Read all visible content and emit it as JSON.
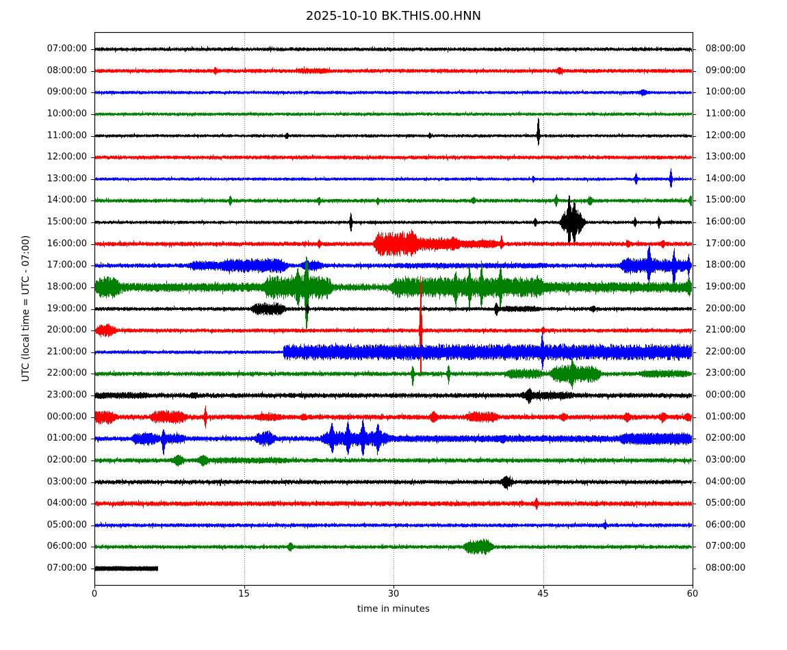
{
  "chart_data": {
    "type": "line",
    "subtype": "seismogram-dayplot",
    "title": "2025-10-10 BK.THIS.00.HNN",
    "xlabel": "time in minutes",
    "ylabel": "UTC (local time = UTC - 07:00)",
    "x_range": [
      0,
      60
    ],
    "x_ticks": [
      "0",
      "15",
      "30",
      "45",
      "60"
    ],
    "gridlines_min": [
      15,
      30,
      45
    ],
    "grid": "dotted-vertical",
    "legend": "none",
    "colors_cycle": [
      "#000000",
      "#ff0000",
      "#0000ff",
      "#008000"
    ],
    "traces": [
      {
        "left_label": "07:00:00",
        "right_label": "08:00:00",
        "color": "#000000",
        "base": 2.2,
        "events": []
      },
      {
        "left_label": "08:00:00",
        "right_label": "09:00:00",
        "color": "#ff0000",
        "base": 2.4,
        "events": [
          {
            "t": 12.1,
            "a": 4,
            "w": 0.1
          },
          {
            "t0": 20.5,
            "t1": 23,
            "a": 1.5
          },
          {
            "t": 46.6,
            "a": 3,
            "w": 0.2
          }
        ]
      },
      {
        "left_label": "09:00:00",
        "right_label": "10:00:00",
        "color": "#0000ff",
        "base": 2.0,
        "events": [
          {
            "t": 55,
            "a": 3,
            "w": 0.2
          }
        ]
      },
      {
        "left_label": "10:00:00",
        "right_label": "11:00:00",
        "color": "#008000",
        "base": 2.0,
        "events": []
      },
      {
        "left_label": "11:00:00",
        "right_label": "12:00:00",
        "color": "#000000",
        "base": 1.9,
        "events": [
          {
            "t": 19.3,
            "a": 3.5,
            "w": 0.08
          },
          {
            "t": 33.6,
            "a": 3,
            "w": 0.08
          },
          {
            "t": 44.5,
            "a": 26,
            "a2": 13,
            "w": 0.08
          }
        ]
      },
      {
        "left_label": "12:00:00",
        "right_label": "13:00:00",
        "color": "#ff0000",
        "base": 2.3,
        "events": []
      },
      {
        "left_label": "13:00:00",
        "right_label": "14:00:00",
        "color": "#0000ff",
        "base": 1.9,
        "events": [
          {
            "t": 44,
            "a": 3,
            "w": 0.08
          },
          {
            "t": 54.3,
            "a": 8,
            "w": 0.08
          },
          {
            "t": 57.8,
            "a": 14,
            "w": 0.08
          }
        ]
      },
      {
        "left_label": "14:00:00",
        "right_label": "15:00:00",
        "color": "#008000",
        "base": 2.3,
        "events": [
          {
            "t": 13.6,
            "a": 6,
            "w": 0.08
          },
          {
            "t": 22.5,
            "a": 5,
            "w": 0.08
          },
          {
            "t": 28.4,
            "a": 3,
            "a2": 6,
            "w": 0.08
          },
          {
            "t": 38,
            "a": 4,
            "w": 0.1
          },
          {
            "t": 46.3,
            "a": 9,
            "w": 0.08
          },
          {
            "t": 49.7,
            "a": 5,
            "w": 0.15
          },
          {
            "t": 59.8,
            "a": 6,
            "w": 0.1
          }
        ]
      },
      {
        "left_label": "15:00:00",
        "right_label": "16:00:00",
        "color": "#000000",
        "base": 2.0,
        "events": [
          {
            "t": 25.7,
            "a": 13,
            "w": 0.08
          },
          {
            "t": 44.2,
            "a": 5,
            "w": 0.08
          },
          {
            "t0": 47,
            "t1": 48.6,
            "a": 14
          },
          {
            "t": 47.6,
            "a": 28,
            "a2": 20,
            "w": 0.1
          },
          {
            "t": 48.1,
            "a": 22,
            "w": 0.1
          },
          {
            "t": 54.2,
            "a": 6,
            "w": 0.08
          },
          {
            "t": 56.6,
            "a": 8,
            "w": 0.08
          }
        ]
      },
      {
        "left_label": "16:00:00",
        "right_label": "17:00:00",
        "color": "#ff0000",
        "base": 2.6,
        "events": [
          {
            "t": 22.5,
            "a": 4,
            "w": 0.1
          },
          {
            "t0": 28.3,
            "t1": 31.8,
            "a": 13
          },
          {
            "t0": 31.8,
            "t1": 36,
            "a": 6
          },
          {
            "t0": 36,
            "t1": 40,
            "a": 3
          },
          {
            "t": 40.8,
            "a": 10,
            "a2": 6,
            "w": 0.08
          },
          {
            "t": 53.5,
            "a": 4,
            "w": 0.1
          },
          {
            "t": 57,
            "a": 4,
            "w": 0.1
          }
        ]
      },
      {
        "left_label": "17:00:00",
        "right_label": "18:00:00",
        "color": "#0000ff",
        "base": 2.6,
        "events": [
          {
            "t0": 9.7,
            "t1": 13,
            "a": 4
          },
          {
            "t0": 13.3,
            "t1": 18.8,
            "a": 7
          },
          {
            "t0": 21,
            "t1": 22.3,
            "a": 5
          },
          {
            "t0": 30,
            "t1": 45,
            "a": 1
          },
          {
            "t0": 53,
            "t1": 56.2,
            "a": 8
          },
          {
            "t": 55.6,
            "a": 26,
            "a2": 20,
            "w": 0.1
          },
          {
            "t0": 56.8,
            "t1": 59.2,
            "a": 6
          },
          {
            "t": 58.1,
            "a": 18,
            "a2": 36,
            "w": 0.08
          },
          {
            "t": 59.6,
            "a": 12,
            "w": 0.08
          }
        ]
      },
      {
        "left_label": "18:00:00",
        "right_label": "19:00:00",
        "color": "#008000",
        "base": 4.2,
        "events": [
          {
            "t0": 0.3,
            "t1": 2,
            "a": 10
          },
          {
            "t0": 2,
            "t1": 17,
            "a": 1.5
          },
          {
            "t0": 17.3,
            "t1": 23.3,
            "a": 11
          },
          {
            "t": 20.4,
            "a": 16,
            "w": 0.1
          },
          {
            "t": 21.25,
            "a": 40,
            "a2": 56,
            "w": 0.1
          },
          {
            "t0": 30,
            "t1": 44.5,
            "a": 9
          },
          {
            "t": 36.2,
            "a": 12,
            "a2": 18,
            "w": 0.08
          },
          {
            "t": 37.6,
            "a": 24,
            "a2": 28,
            "w": 0.08
          },
          {
            "t": 38.8,
            "a": 26,
            "a2": 20,
            "w": 0.08
          },
          {
            "t": 40.7,
            "a": 22,
            "w": 0.08
          },
          {
            "t0": 44.5,
            "t1": 60,
            "a": 2.5
          },
          {
            "t": 59.6,
            "a": 9,
            "w": 0.1
          }
        ]
      },
      {
        "left_label": "19:00:00",
        "right_label": "20:00:00",
        "color": "#000000",
        "base": 2.3,
        "events": [
          {
            "t0": 16,
            "t1": 18.6,
            "a": 6
          },
          {
            "t": 21.35,
            "a": 6,
            "w": 0.08
          },
          {
            "t": 40.3,
            "a": 8,
            "w": 0.12
          },
          {
            "t0": 41,
            "t1": 44,
            "a": 2
          },
          {
            "t": 50,
            "a": 2.5,
            "w": 0.15
          }
        ]
      },
      {
        "left_label": "20:00:00",
        "right_label": "21:00:00",
        "color": "#ff0000",
        "base": 2.4,
        "events": [
          {
            "t0": 0.4,
            "t1": 1.6,
            "a": 6
          },
          {
            "t": 32.7,
            "a": 76,
            "a2": 84,
            "w": 0.07
          },
          {
            "t": 45,
            "a": 3,
            "w": 0.1
          }
        ]
      },
      {
        "left_label": "21:00:00",
        "right_label": "22:00:00",
        "color": "#0000ff",
        "base": 2.1,
        "events": [
          {
            "t0": 18.95,
            "t1": 60,
            "a": 8.5,
            "s": 1
          },
          {
            "t": 44.9,
            "a": 16,
            "w": 0.08
          }
        ]
      },
      {
        "left_label": "22:00:00",
        "right_label": "23:00:00",
        "color": "#008000",
        "base": 2.6,
        "events": [
          {
            "t": 31.9,
            "a": 9,
            "a2": 17,
            "w": 0.08
          },
          {
            "t": 35.5,
            "a": 13,
            "w": 0.08
          },
          {
            "t0": 41.5,
            "t1": 44.5,
            "a": 4
          },
          {
            "t0": 46,
            "t1": 50.2,
            "a": 9
          },
          {
            "t": 47.9,
            "a": 13,
            "w": 0.1
          },
          {
            "t0": 55,
            "t1": 59,
            "a": 2.5
          }
        ]
      },
      {
        "left_label": "23:00:00",
        "right_label": "00:00:00",
        "color": "#000000",
        "base": 2.9,
        "events": [
          {
            "t0": 0,
            "t1": 5,
            "a": 1.5
          },
          {
            "t": 10,
            "a": 2,
            "w": 0.2
          },
          {
            "t": 43.6,
            "a": 7,
            "w": 0.15
          },
          {
            "t0": 43,
            "t1": 47.5,
            "a": 2.5
          }
        ]
      },
      {
        "left_label": "00:00:00",
        "right_label": "01:00:00",
        "color": "#ff0000",
        "base": 3.0,
        "events": [
          {
            "t0": 0,
            "t1": 1.6,
            "a": 6
          },
          {
            "t0": 5.8,
            "t1": 8.7,
            "a": 6
          },
          {
            "t": 11.1,
            "a": 13,
            "w": 0.08
          },
          {
            "t0": 16.5,
            "t1": 18,
            "a": 3
          },
          {
            "t": 21,
            "a": 3,
            "w": 0.15
          },
          {
            "t": 34,
            "a": 6,
            "w": 0.2
          },
          {
            "t0": 37.5,
            "t1": 40,
            "a": 4
          },
          {
            "t": 47,
            "a": 3,
            "w": 0.15
          },
          {
            "t": 53.4,
            "a": 4,
            "w": 0.2
          },
          {
            "t": 57,
            "a": 4,
            "w": 0.2
          },
          {
            "t": 59.5,
            "a": 4,
            "w": 0.15
          }
        ]
      },
      {
        "left_label": "01:00:00",
        "right_label": "02:00:00",
        "color": "#0000ff",
        "base": 3.0,
        "events": [
          {
            "t0": 4,
            "t1": 6,
            "a": 6
          },
          {
            "t": 6.9,
            "a": 10,
            "a2": 22,
            "w": 0.1
          },
          {
            "t0": 7,
            "t1": 8.5,
            "a": 4
          },
          {
            "t0": 16.4,
            "t1": 17.6,
            "a": 7
          },
          {
            "t0": 23,
            "t1": 29,
            "a": 7
          },
          {
            "t": 23.8,
            "a": 16,
            "w": 0.1
          },
          {
            "t": 25.4,
            "a": 19,
            "w": 0.1
          },
          {
            "t": 26.9,
            "a": 21,
            "w": 0.1
          },
          {
            "t": 28.4,
            "a": 14,
            "w": 0.1
          },
          {
            "t0": 29.5,
            "t1": 60,
            "a": 1.5
          },
          {
            "t": 41,
            "a": 3,
            "w": 0.15
          },
          {
            "t0": 53,
            "t1": 59.5,
            "a": 4
          }
        ]
      },
      {
        "left_label": "02:00:00",
        "right_label": "03:00:00",
        "color": "#008000",
        "base": 2.6,
        "events": [
          {
            "t": 8.4,
            "a": 6,
            "w": 0.3
          },
          {
            "t": 10.9,
            "a": 6,
            "w": 0.3
          },
          {
            "t0": 12,
            "t1": 19,
            "a": 1.5
          }
        ]
      },
      {
        "left_label": "03:00:00",
        "right_label": "04:00:00",
        "color": "#000000",
        "base": 2.6,
        "events": [
          {
            "t": 41.3,
            "a": 7,
            "w": 0.3
          }
        ]
      },
      {
        "left_label": "04:00:00",
        "right_label": "05:00:00",
        "color": "#ff0000",
        "base": 2.9,
        "events": [
          {
            "t": 44.3,
            "a": 7,
            "w": 0.08
          }
        ]
      },
      {
        "left_label": "05:00:00",
        "right_label": "06:00:00",
        "color": "#0000ff",
        "base": 2.3,
        "events": [
          {
            "t": 51.2,
            "a": 4,
            "w": 0.1
          }
        ]
      },
      {
        "left_label": "06:00:00",
        "right_label": "07:00:00",
        "color": "#008000",
        "base": 2.3,
        "events": [
          {
            "t": 19.6,
            "a": 5,
            "w": 0.15
          },
          {
            "t0": 37.3,
            "t1": 39.4,
            "a": 8
          }
        ]
      },
      {
        "left_label": "07:00:00",
        "right_label": "08:00:00",
        "color": "#000000",
        "base": 3.2,
        "duration_min": 6.3,
        "flat": 1,
        "events": []
      }
    ]
  }
}
